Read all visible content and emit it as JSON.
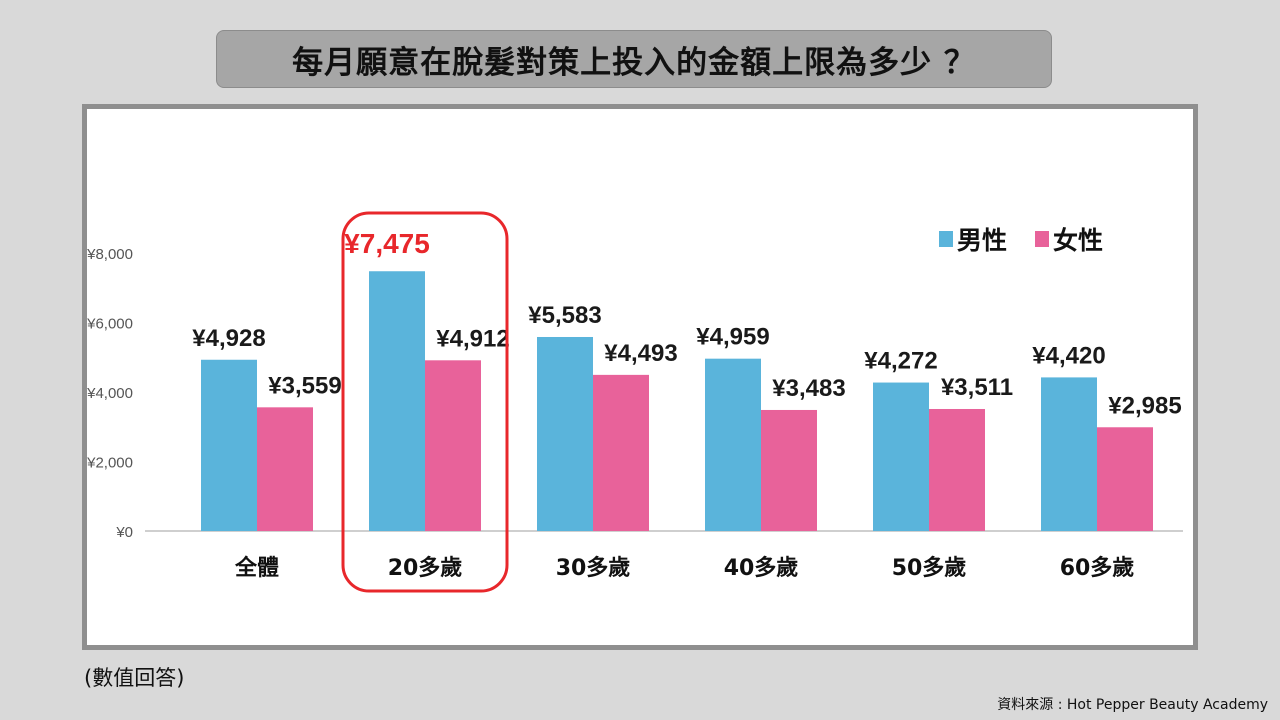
{
  "title": "每月願意在脫髮對策上投入的金額上限為多少 ？",
  "footnote": "(數值回答)",
  "source": "資料來源 : Hot Pepper Beauty Academy",
  "chart_data": {
    "type": "bar",
    "categories": [
      "全體",
      "20多歲",
      "30多歲",
      "40多歲",
      "50多歲",
      "60多歲"
    ],
    "series": [
      {
        "name": "男性",
        "color": "#5ab4db",
        "values": [
          4928,
          7475,
          5583,
          4959,
          4272,
          4420
        ],
        "labels": [
          "¥4,928",
          "¥7,475",
          "¥5,583",
          "¥4,959",
          "¥4,272",
          "¥4,420"
        ]
      },
      {
        "name": "女性",
        "color": "#e8629a",
        "values": [
          3559,
          4912,
          4493,
          3483,
          3511,
          2985
        ],
        "labels": [
          "¥3,559",
          "¥4,912",
          "¥4,493",
          "¥3,483",
          "¥3,511",
          "¥2,985"
        ]
      }
    ],
    "yticks": [
      "¥0",
      "¥2,000",
      "¥4,000",
      "¥6,000",
      "¥8,000"
    ],
    "ytick_values": [
      0,
      2000,
      4000,
      6000,
      8000
    ],
    "ylim": [
      0,
      8000
    ],
    "highlight_category": "20多歲",
    "highlight_color": "#e8272b",
    "legend_position": "top-right",
    "grid": false
  }
}
